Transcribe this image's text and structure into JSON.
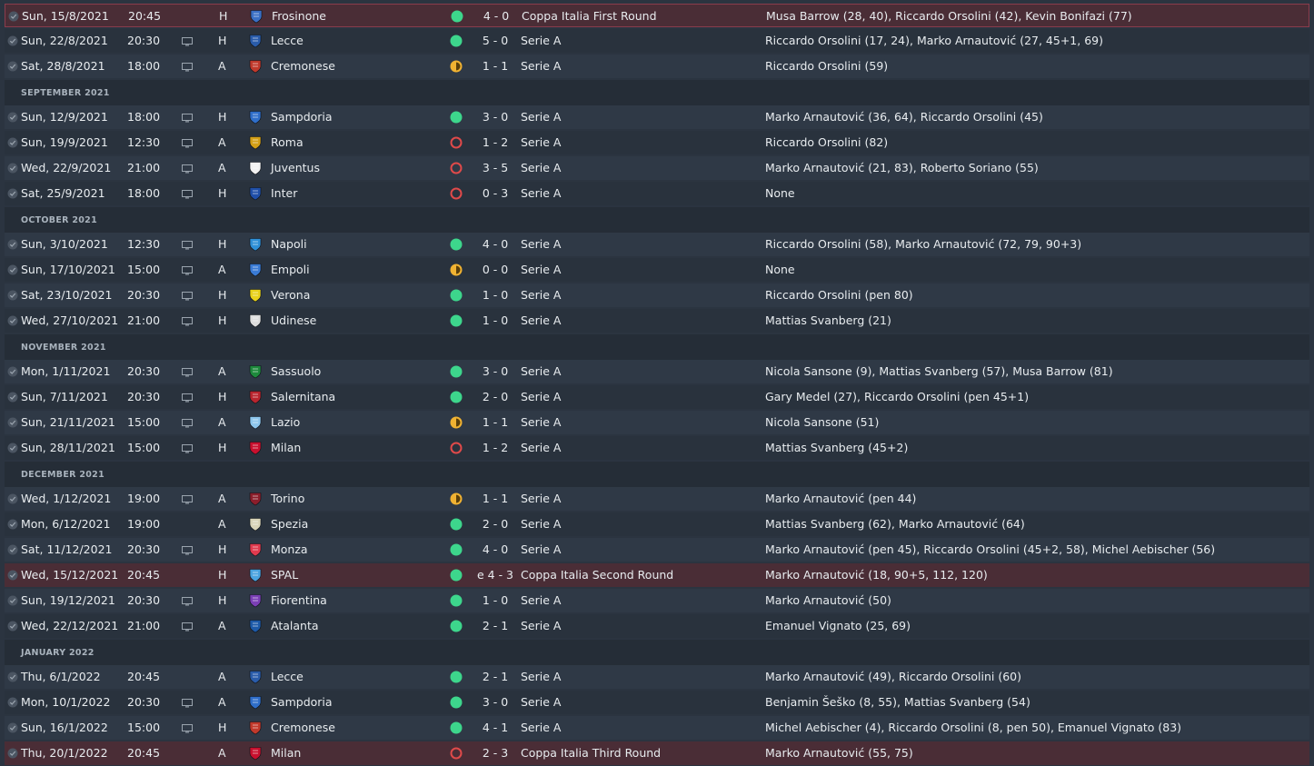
{
  "colors": {
    "win": "#3dd68c",
    "draw": "#f0b232",
    "loss": "#e04a4a",
    "cup_row": "#4a2d36"
  },
  "rows": [
    {
      "kind": "match",
      "date": "Sun, 15/8/2021",
      "time": "20:45",
      "tv": false,
      "venue": "H",
      "opponent": "Frosinone",
      "badge": "#3a6fc4",
      "result": "win",
      "score": "4 - 0",
      "competition": "Coppa Italia First Round",
      "scorers": "Musa Barrow (28, 40), Riccardo Orsolini (42), Kevin Bonifazi (77)",
      "cup": true
    },
    {
      "kind": "match",
      "date": "Sun, 22/8/2021",
      "time": "20:30",
      "tv": true,
      "venue": "H",
      "opponent": "Lecce",
      "badge": "#2a5caa",
      "result": "win",
      "score": "5 - 0",
      "competition": "Serie A",
      "scorers": "Riccardo Orsolini (17, 24), Marko Arnautović (27, 45+1, 69)",
      "cup": false
    },
    {
      "kind": "match",
      "date": "Sat, 28/8/2021",
      "time": "18:00",
      "tv": true,
      "venue": "A",
      "opponent": "Cremonese",
      "badge": "#c0392b",
      "result": "draw",
      "score": "1 - 1",
      "competition": "Serie A",
      "scorers": "Riccardo Orsolini (59)",
      "cup": false
    },
    {
      "kind": "header",
      "label": "SEPTEMBER 2021"
    },
    {
      "kind": "match",
      "date": "Sun, 12/9/2021",
      "time": "18:00",
      "tv": true,
      "venue": "H",
      "opponent": "Sampdoria",
      "badge": "#2f6ec9",
      "result": "win",
      "score": "3 - 0",
      "competition": "Serie A",
      "scorers": "Marko Arnautović (36, 64), Riccardo Orsolini (45)",
      "cup": false
    },
    {
      "kind": "match",
      "date": "Sun, 19/9/2021",
      "time": "12:30",
      "tv": true,
      "venue": "A",
      "opponent": "Roma",
      "badge": "#d4a017",
      "result": "loss",
      "score": "1 - 2",
      "competition": "Serie A",
      "scorers": "Riccardo Orsolini (82)",
      "cup": false
    },
    {
      "kind": "match",
      "date": "Wed, 22/9/2021",
      "time": "21:00",
      "tv": true,
      "venue": "A",
      "opponent": "Juventus",
      "badge": "#f2f2f2",
      "result": "loss",
      "score": "3 - 5",
      "competition": "Serie A",
      "scorers": "Marko Arnautović (21, 83), Roberto Soriano (55)",
      "cup": false
    },
    {
      "kind": "match",
      "date": "Sat, 25/9/2021",
      "time": "18:00",
      "tv": true,
      "venue": "H",
      "opponent": "Inter",
      "badge": "#1f4fa8",
      "result": "loss",
      "score": "0 - 3",
      "competition": "Serie A",
      "scorers": "None",
      "cup": false
    },
    {
      "kind": "header",
      "label": "OCTOBER 2021"
    },
    {
      "kind": "match",
      "date": "Sun, 3/10/2021",
      "time": "12:30",
      "tv": true,
      "venue": "H",
      "opponent": "Napoli",
      "badge": "#2e8fd6",
      "result": "win",
      "score": "4 - 0",
      "competition": "Serie A",
      "scorers": "Riccardo Orsolini (58), Marko Arnautović (72, 79, 90+3)",
      "cup": false
    },
    {
      "kind": "match",
      "date": "Sun, 17/10/2021",
      "time": "15:00",
      "tv": true,
      "venue": "A",
      "opponent": "Empoli",
      "badge": "#3a7bd5",
      "result": "draw",
      "score": "0 - 0",
      "competition": "Serie A",
      "scorers": "None",
      "cup": false
    },
    {
      "kind": "match",
      "date": "Sat, 23/10/2021",
      "time": "20:30",
      "tv": true,
      "venue": "H",
      "opponent": "Verona",
      "badge": "#e8d21a",
      "result": "win",
      "score": "1 - 0",
      "competition": "Serie A",
      "scorers": "Riccardo Orsolini (pen 80)",
      "cup": false
    },
    {
      "kind": "match",
      "date": "Wed, 27/10/2021",
      "time": "21:00",
      "tv": true,
      "venue": "H",
      "opponent": "Udinese",
      "badge": "#dddddd",
      "result": "win",
      "score": "1 - 0",
      "competition": "Serie A",
      "scorers": "Mattias Svanberg (21)",
      "cup": false
    },
    {
      "kind": "header",
      "label": "NOVEMBER 2021"
    },
    {
      "kind": "match",
      "date": "Mon, 1/11/2021",
      "time": "20:30",
      "tv": true,
      "venue": "A",
      "opponent": "Sassuolo",
      "badge": "#1e8a3c",
      "result": "win",
      "score": "3 - 0",
      "competition": "Serie A",
      "scorers": "Nicola Sansone (9), Mattias Svanberg (57), Musa Barrow (81)",
      "cup": false
    },
    {
      "kind": "match",
      "date": "Sun, 7/11/2021",
      "time": "20:30",
      "tv": true,
      "venue": "H",
      "opponent": "Salernitana",
      "badge": "#b8252e",
      "result": "win",
      "score": "2 - 0",
      "competition": "Serie A",
      "scorers": "Gary Medel (27), Riccardo Orsolini (pen 45+1)",
      "cup": false
    },
    {
      "kind": "match",
      "date": "Sun, 21/11/2021",
      "time": "15:00",
      "tv": true,
      "venue": "A",
      "opponent": "Lazio",
      "badge": "#8ec6ec",
      "result": "draw",
      "score": "1 - 1",
      "competition": "Serie A",
      "scorers": "Nicola Sansone (51)",
      "cup": false
    },
    {
      "kind": "match",
      "date": "Sun, 28/11/2021",
      "time": "15:00",
      "tv": true,
      "venue": "H",
      "opponent": "Milan",
      "badge": "#c8102e",
      "result": "loss",
      "score": "1 - 2",
      "competition": "Serie A",
      "scorers": "Mattias Svanberg (45+2)",
      "cup": false
    },
    {
      "kind": "header",
      "label": "DECEMBER 2021"
    },
    {
      "kind": "match",
      "date": "Wed, 1/12/2021",
      "time": "19:00",
      "tv": true,
      "venue": "A",
      "opponent": "Torino",
      "badge": "#8b1e2b",
      "result": "draw",
      "score": "1 - 1",
      "competition": "Serie A",
      "scorers": "Marko Arnautović (pen 44)",
      "cup": false
    },
    {
      "kind": "match",
      "date": "Mon, 6/12/2021",
      "time": "19:00",
      "tv": false,
      "venue": "A",
      "opponent": "Spezia",
      "badge": "#d9d4b8",
      "result": "win",
      "score": "2 - 0",
      "competition": "Serie A",
      "scorers": "Mattias Svanberg (62), Marko Arnautović (64)",
      "cup": false
    },
    {
      "kind": "match",
      "date": "Sat, 11/12/2021",
      "time": "20:30",
      "tv": true,
      "venue": "H",
      "opponent": "Monza",
      "badge": "#e03a4e",
      "result": "win",
      "score": "4 - 0",
      "competition": "Serie A",
      "scorers": "Marko Arnautović (pen 45), Riccardo Orsolini (45+2, 58), Michel Aebischer (56)",
      "cup": false
    },
    {
      "kind": "match",
      "date": "Wed, 15/12/2021",
      "time": "20:45",
      "tv": false,
      "venue": "H",
      "opponent": "SPAL",
      "badge": "#4aa3df",
      "result": "win",
      "score": "e 4 - 3",
      "competition": "Coppa Italia Second Round",
      "scorers": "Marko Arnautović (18, 90+5, 112, 120)",
      "cup": true
    },
    {
      "kind": "match",
      "date": "Sun, 19/12/2021",
      "time": "20:30",
      "tv": true,
      "venue": "H",
      "opponent": "Fiorentina",
      "badge": "#7b3fb5",
      "result": "win",
      "score": "1 - 0",
      "competition": "Serie A",
      "scorers": "Marko Arnautović (50)",
      "cup": false
    },
    {
      "kind": "match",
      "date": "Wed, 22/12/2021",
      "time": "21:00",
      "tv": true,
      "venue": "A",
      "opponent": "Atalanta",
      "badge": "#1d5aa8",
      "result": "win",
      "score": "2 - 1",
      "competition": "Serie A",
      "scorers": "Emanuel Vignato (25, 69)",
      "cup": false
    },
    {
      "kind": "header",
      "label": "JANUARY 2022"
    },
    {
      "kind": "match",
      "date": "Thu, 6/1/2022",
      "time": "20:45",
      "tv": false,
      "venue": "A",
      "opponent": "Lecce",
      "badge": "#2a5caa",
      "result": "win",
      "score": "2 - 1",
      "competition": "Serie A",
      "scorers": "Marko Arnautović (49), Riccardo Orsolini (60)",
      "cup": false
    },
    {
      "kind": "match",
      "date": "Mon, 10/1/2022",
      "time": "20:30",
      "tv": true,
      "venue": "A",
      "opponent": "Sampdoria",
      "badge": "#2f6ec9",
      "result": "win",
      "score": "3 - 0",
      "competition": "Serie A",
      "scorers": "Benjamin Šeško (8, 55), Mattias Svanberg (54)",
      "cup": false
    },
    {
      "kind": "match",
      "date": "Sun, 16/1/2022",
      "time": "15:00",
      "tv": true,
      "venue": "H",
      "opponent": "Cremonese",
      "badge": "#c0392b",
      "result": "win",
      "score": "4 - 1",
      "competition": "Serie A",
      "scorers": "Michel Aebischer (4), Riccardo Orsolini (8, pen 50), Emanuel Vignato (83)",
      "cup": false
    },
    {
      "kind": "match",
      "date": "Thu, 20/1/2022",
      "time": "20:45",
      "tv": false,
      "venue": "A",
      "opponent": "Milan",
      "badge": "#c8102e",
      "result": "loss",
      "score": "2 - 3",
      "competition": "Coppa Italia Third Round",
      "scorers": "Marko Arnautović (55, 75)",
      "cup": true
    }
  ]
}
